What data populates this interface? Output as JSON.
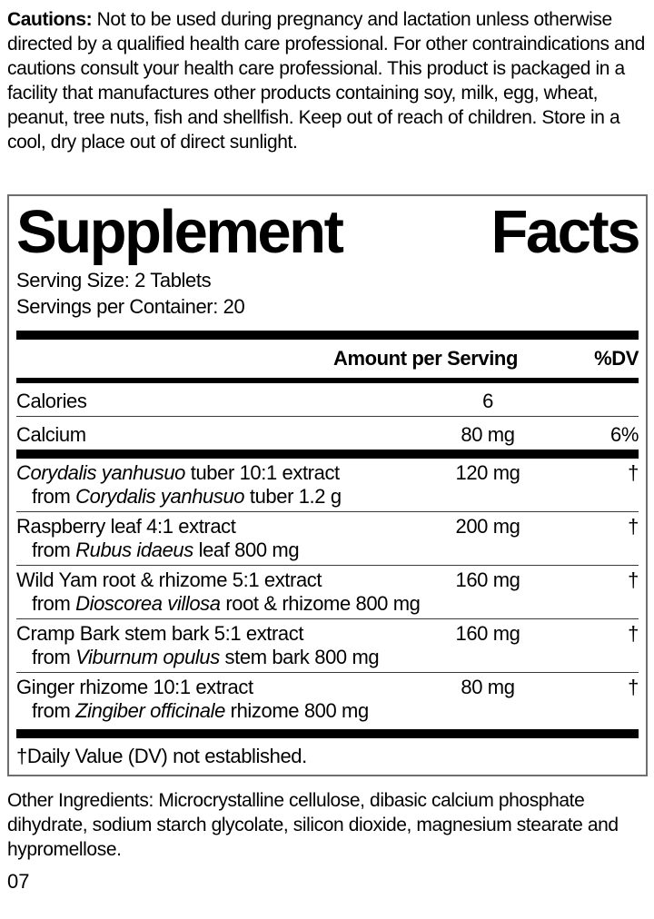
{
  "cautions": {
    "label": "Cautions:",
    "text": "Not to be used during pregnancy and lactation unless otherwise directed by a qualified health care professional. For other contraindications and cautions consult your health care professional. This product is packaged in a facility that manufactures other products containing soy, milk, egg, wheat, peanut, tree nuts, fish and shellfish. Keep out of reach of children. Store in a cool, dry place out of direct sunlight."
  },
  "panel": {
    "title_words": [
      "Supplement",
      "Facts"
    ],
    "serving_size": "Serving Size: 2 Tablets",
    "servings_per_container": "Servings per Container: 20",
    "columns": {
      "amount": "Amount per Serving",
      "dv": "%DV"
    },
    "nutrient_rows": [
      {
        "name": [
          {
            "t": "Calories"
          }
        ],
        "amount": "6",
        "dv": ""
      },
      {
        "name": [
          {
            "t": "Calcium"
          }
        ],
        "amount": "80 mg",
        "dv": "6%"
      }
    ],
    "ingredient_rows": [
      {
        "name": [
          {
            "t": "Corydalis yanhusuo",
            "i": true
          },
          {
            "t": " tuber 10:1 extract"
          }
        ],
        "detail": [
          {
            "t": "from "
          },
          {
            "t": "Corydalis yanhusuo",
            "i": true
          },
          {
            "t": " tuber 1.2 g"
          }
        ],
        "amount": "120 mg",
        "dv": "†"
      },
      {
        "name": [
          {
            "t": "Raspberry leaf 4:1 extract"
          }
        ],
        "detail": [
          {
            "t": "from "
          },
          {
            "t": "Rubus idaeus",
            "i": true
          },
          {
            "t": " leaf 800 mg"
          }
        ],
        "amount": "200 mg",
        "dv": "†"
      },
      {
        "name": [
          {
            "t": "Wild Yam root & rhizome 5:1 extract"
          }
        ],
        "detail": [
          {
            "t": "from "
          },
          {
            "t": "Dioscorea villosa",
            "i": true
          },
          {
            "t": " root & rhizome 800 mg"
          }
        ],
        "amount": "160 mg",
        "dv": "†"
      },
      {
        "name": [
          {
            "t": "Cramp Bark stem bark 5:1 extract"
          }
        ],
        "detail": [
          {
            "t": "from "
          },
          {
            "t": "Viburnum opulus",
            "i": true
          },
          {
            "t": " stem bark 800 mg"
          }
        ],
        "amount": "160 mg",
        "dv": "†"
      },
      {
        "name": [
          {
            "t": "Ginger rhizome 10:1 extract"
          }
        ],
        "detail": [
          {
            "t": "from "
          },
          {
            "t": "Zingiber officinale",
            "i": true
          },
          {
            "t": " rhizome 800 mg"
          }
        ],
        "amount": "80 mg",
        "dv": "†"
      }
    ],
    "footnote": "†Daily Value (DV) not established."
  },
  "other_ingredients": "Other Ingredients: Microcrystalline cellulose, dibasic calcium phosphate dihydrate, sodium starch glycolate, silicon dioxide, magnesium stearate and hypromellose.",
  "lot_code": "07",
  "colors": {
    "ink": "#000000",
    "panel_border": "#6e6e6e",
    "background": "#ffffff"
  }
}
